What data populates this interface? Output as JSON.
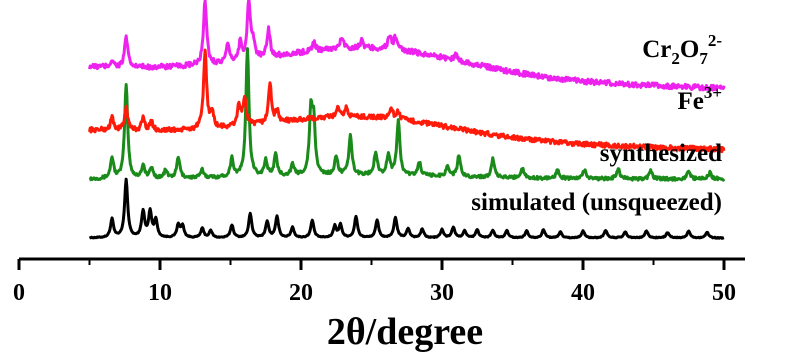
{
  "chart_data": {
    "type": "line",
    "xlabel": "2θ/degree",
    "ylabel": "",
    "xlim": [
      5,
      50
    ],
    "x_ticks": [
      0,
      10,
      20,
      30,
      40,
      50
    ],
    "tick_labels": [
      "0",
      "10",
      "20",
      "30",
      "40",
      "50"
    ],
    "grid": false,
    "legend": "none",
    "series": [
      {
        "name": "simulated (unsqueezed)",
        "color": "#000000",
        "peaks": [
          [
            6.6,
            0.32
          ],
          [
            7.6,
            1.0
          ],
          [
            8.8,
            0.45
          ],
          [
            9.3,
            0.44
          ],
          [
            9.7,
            0.3
          ],
          [
            11.3,
            0.22
          ],
          [
            11.6,
            0.2
          ],
          [
            13.0,
            0.16
          ],
          [
            13.6,
            0.12
          ],
          [
            15.1,
            0.22
          ],
          [
            16.4,
            0.42
          ],
          [
            17.6,
            0.28
          ],
          [
            18.3,
            0.36
          ],
          [
            19.4,
            0.18
          ],
          [
            20.8,
            0.3
          ],
          [
            22.4,
            0.2
          ],
          [
            22.8,
            0.22
          ],
          [
            23.9,
            0.36
          ],
          [
            25.4,
            0.3
          ],
          [
            26.7,
            0.35
          ],
          [
            27.6,
            0.16
          ],
          [
            28.6,
            0.15
          ],
          [
            30.0,
            0.14
          ],
          [
            30.8,
            0.18
          ],
          [
            31.6,
            0.12
          ],
          [
            32.5,
            0.14
          ],
          [
            33.6,
            0.13
          ],
          [
            34.6,
            0.12
          ],
          [
            36.0,
            0.12
          ],
          [
            37.2,
            0.14
          ],
          [
            38.4,
            0.1
          ],
          [
            40.0,
            0.12
          ],
          [
            41.6,
            0.13
          ],
          [
            43.0,
            0.1
          ],
          [
            44.5,
            0.12
          ],
          [
            46.0,
            0.09
          ],
          [
            47.5,
            0.12
          ],
          [
            48.8,
            0.1
          ]
        ],
        "hump": {
          "center": 24,
          "width": 12,
          "height": 0.0
        },
        "noise": 0.008
      },
      {
        "name": "synthesized",
        "color": "#1a8a1a",
        "peaks": [
          [
            6.6,
            0.16
          ],
          [
            7.6,
            0.72
          ],
          [
            8.8,
            0.1
          ],
          [
            9.4,
            0.08
          ],
          [
            10.4,
            0.06
          ],
          [
            11.3,
            0.16
          ],
          [
            13.0,
            0.06
          ],
          [
            15.1,
            0.14
          ],
          [
            16.2,
            0.98
          ],
          [
            17.5,
            0.12
          ],
          [
            18.2,
            0.16
          ],
          [
            19.4,
            0.08
          ],
          [
            20.7,
            0.46
          ],
          [
            20.9,
            0.38
          ],
          [
            22.5,
            0.14
          ],
          [
            23.5,
            0.3
          ],
          [
            25.3,
            0.18
          ],
          [
            26.2,
            0.16
          ],
          [
            26.9,
            0.42
          ],
          [
            28.4,
            0.1
          ],
          [
            30.4,
            0.08
          ],
          [
            31.2,
            0.16
          ],
          [
            33.6,
            0.14
          ],
          [
            35.7,
            0.08
          ],
          [
            38.2,
            0.07
          ],
          [
            40.1,
            0.07
          ],
          [
            42.5,
            0.08
          ],
          [
            44.8,
            0.06
          ],
          [
            47.5,
            0.06
          ],
          [
            49.0,
            0.05
          ]
        ],
        "hump": {
          "center": 24,
          "width": 10,
          "height": 0.03
        },
        "noise": 0.012
      },
      {
        "name": "Fe³⁺",
        "color": "#ff1a0a",
        "peaks": [
          [
            6.6,
            0.12
          ],
          [
            7.6,
            0.22
          ],
          [
            8.8,
            0.12
          ],
          [
            9.4,
            0.08
          ],
          [
            13.2,
            0.72
          ],
          [
            13.7,
            0.14
          ],
          [
            15.6,
            0.2
          ],
          [
            16.0,
            0.26
          ],
          [
            17.8,
            0.36
          ],
          [
            18.3,
            0.1
          ],
          [
            22.6,
            0.08
          ],
          [
            23.2,
            0.08
          ],
          [
            26.4,
            0.1
          ],
          [
            26.9,
            0.07
          ]
        ],
        "hump": {
          "center": 24.5,
          "width": 9,
          "height": 0.2
        },
        "noise": 0.022
      },
      {
        "name": "Cr2O7 2-",
        "color": "#ee22ee",
        "peaks": [
          [
            6.6,
            0.06
          ],
          [
            7.6,
            0.26
          ],
          [
            13.2,
            0.55
          ],
          [
            14.8,
            0.14
          ],
          [
            15.7,
            0.16
          ],
          [
            16.3,
            0.5
          ],
          [
            16.6,
            0.14
          ],
          [
            17.7,
            0.24
          ],
          [
            20.9,
            0.08
          ],
          [
            22.9,
            0.1
          ],
          [
            24.3,
            0.06
          ],
          [
            26.3,
            0.12
          ],
          [
            26.7,
            0.1
          ],
          [
            31.0,
            0.05
          ]
        ],
        "hump": {
          "center": 25,
          "width": 9.5,
          "height": 0.24
        },
        "noise": 0.022
      }
    ]
  },
  "labels": {
    "simulated_label": "simulated (unsqueezed)",
    "synthesized_label": "synthesized",
    "fe_main": "Fe",
    "fe_sup": "3+",
    "cr_a": "Cr",
    "cr_sub1": "2",
    "cr_b": "O",
    "cr_sub2": "7",
    "cr_sup": "2-"
  }
}
